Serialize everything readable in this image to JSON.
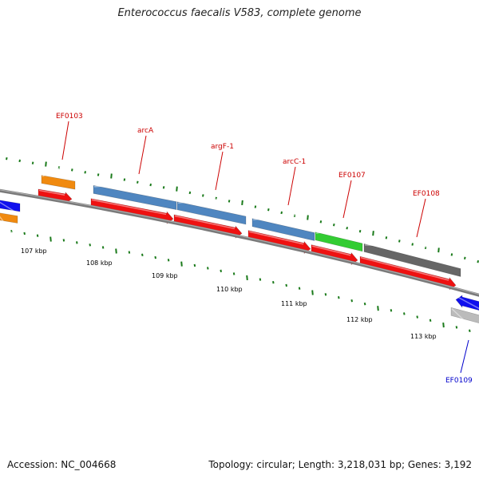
{
  "title": "Enterococcus faecalis V583, complete genome",
  "footer": {
    "accession": "Accession: NC_004668",
    "summary": "Topology: circular; Length: 3,218,031 bp; Genes: 3,192"
  },
  "colors": {
    "backbone": "#808080",
    "ticks": "#1a7a1a",
    "cds_red": "#ee1111",
    "label_red": "#cc0000",
    "label_blue": "#0000cc",
    "orange": "#f08a10",
    "steelblue": "#4f86c0",
    "green": "#33cc33",
    "darkgray": "#666666",
    "blue": "#1010ee",
    "lightgray": "#bbbbbb"
  },
  "axis_labels": [
    "107 kbp",
    "108 kbp",
    "109 kbp",
    "110 kbp",
    "111 kbp",
    "112 kbp",
    "113 kbp"
  ],
  "genes": [
    {
      "name": "EF0103",
      "color": "red"
    },
    {
      "name": "arcA",
      "color": "red"
    },
    {
      "name": "argF-1",
      "color": "red"
    },
    {
      "name": "arcC-1",
      "color": "red"
    },
    {
      "name": "EF0107",
      "color": "red"
    },
    {
      "name": "EF0108",
      "color": "red"
    },
    {
      "name": "EF0109",
      "color": "blue"
    }
  ]
}
